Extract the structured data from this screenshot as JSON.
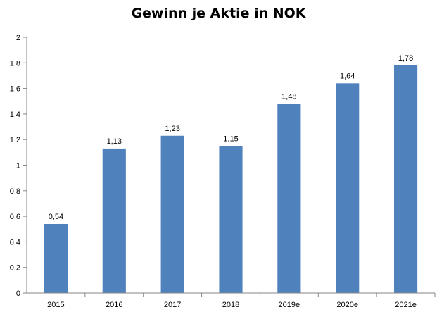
{
  "chart_data": {
    "type": "bar",
    "title": "Gewinn je Aktie in NOK",
    "xlabel": "",
    "ylabel": "",
    "categories": [
      "2015",
      "2016",
      "2017",
      "2018",
      "2019e",
      "2020e",
      "2021e"
    ],
    "values": [
      0.54,
      1.13,
      1.23,
      1.15,
      1.48,
      1.64,
      1.78
    ],
    "data_labels": [
      "0,54",
      "1,13",
      "1,23",
      "1,15",
      "1,48",
      "1,64",
      "1,78"
    ],
    "ylim": [
      0,
      2
    ],
    "yticks": [
      0,
      0.2,
      0.4,
      0.6,
      0.8,
      1,
      1.2,
      1.4,
      1.6,
      1.8,
      2
    ],
    "ytick_labels": [
      "0",
      "0,2",
      "0,4",
      "0,6",
      "0,8",
      "1",
      "1,2",
      "1,4",
      "1,6",
      "1,8",
      "2"
    ],
    "grid": false,
    "legend": "none",
    "bar_color": "#4f81bd",
    "axis_color": "#868686"
  }
}
